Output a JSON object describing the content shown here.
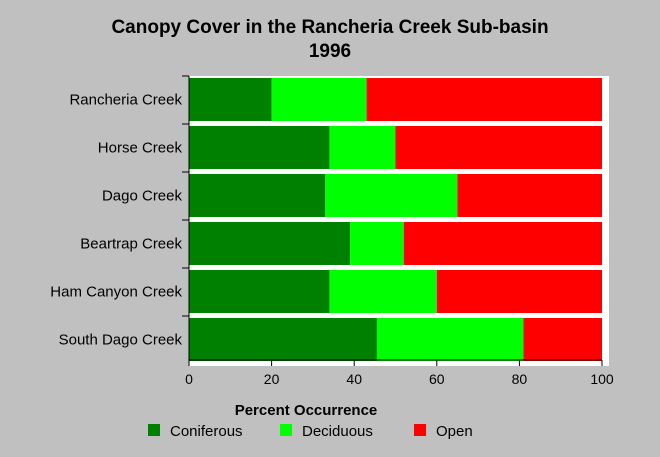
{
  "chart_data": {
    "type": "bar",
    "orientation": "horizontal",
    "stacked": true,
    "title": [
      "Canopy Cover in the Rancheria Creek Sub-basin",
      "1996"
    ],
    "xlabel": "Percent Occurrence",
    "ylabel": "",
    "xlim": [
      0,
      100
    ],
    "xticks": [
      0,
      20,
      40,
      60,
      80,
      100
    ],
    "categories": [
      "Rancheria Creek",
      "Horse Creek",
      "Dago Creek",
      "Beartrap Creek",
      "Ham Canyon Creek",
      "South Dago Creek"
    ],
    "series": [
      {
        "name": "Coniferous",
        "color": "#008000",
        "values": [
          20,
          34,
          33,
          39,
          34,
          45.5
        ]
      },
      {
        "name": "Deciduous",
        "color": "#00ff00",
        "values": [
          23,
          16,
          32,
          13,
          26,
          35.5
        ]
      },
      {
        "name": "Open",
        "color": "#ff0000",
        "values": [
          57,
          50,
          35,
          48,
          40,
          19
        ]
      }
    ],
    "legend_position": "bottom",
    "grid": false
  }
}
